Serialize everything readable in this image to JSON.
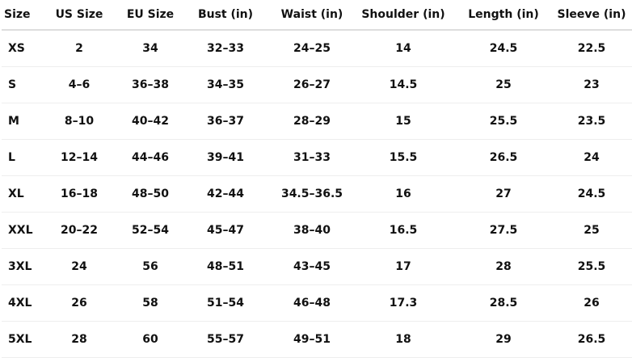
{
  "table": {
    "headers": [
      "Size",
      "US Size",
      "EU Size",
      "Bust (in)",
      "Waist (in)",
      "Shoulder (in)",
      "Length (in)",
      "Sleeve (in)"
    ],
    "rows": [
      [
        "XS",
        "2",
        "34",
        "32–33",
        "24–25",
        "14",
        "24.5",
        "22.5"
      ],
      [
        "S",
        "4–6",
        "36–38",
        "34–35",
        "26–27",
        "14.5",
        "25",
        "23"
      ],
      [
        "M",
        "8–10",
        "40–42",
        "36–37",
        "28–29",
        "15",
        "25.5",
        "23.5"
      ],
      [
        "L",
        "12–14",
        "44–46",
        "39–41",
        "31–33",
        "15.5",
        "26.5",
        "24"
      ],
      [
        "XL",
        "16–18",
        "48–50",
        "42–44",
        "34.5–36.5",
        "16",
        "27",
        "24.5"
      ],
      [
        "XXL",
        "20–22",
        "52–54",
        "45–47",
        "38–40",
        "16.5",
        "27.5",
        "25"
      ],
      [
        "3XL",
        "24",
        "56",
        "48–51",
        "43–45",
        "17",
        "28",
        "25.5"
      ],
      [
        "4XL",
        "26",
        "58",
        "51–54",
        "46–48",
        "17.3",
        "28.5",
        "26"
      ],
      [
        "5XL",
        "28",
        "60",
        "55–57",
        "49–51",
        "18",
        "29",
        "26.5"
      ]
    ]
  }
}
